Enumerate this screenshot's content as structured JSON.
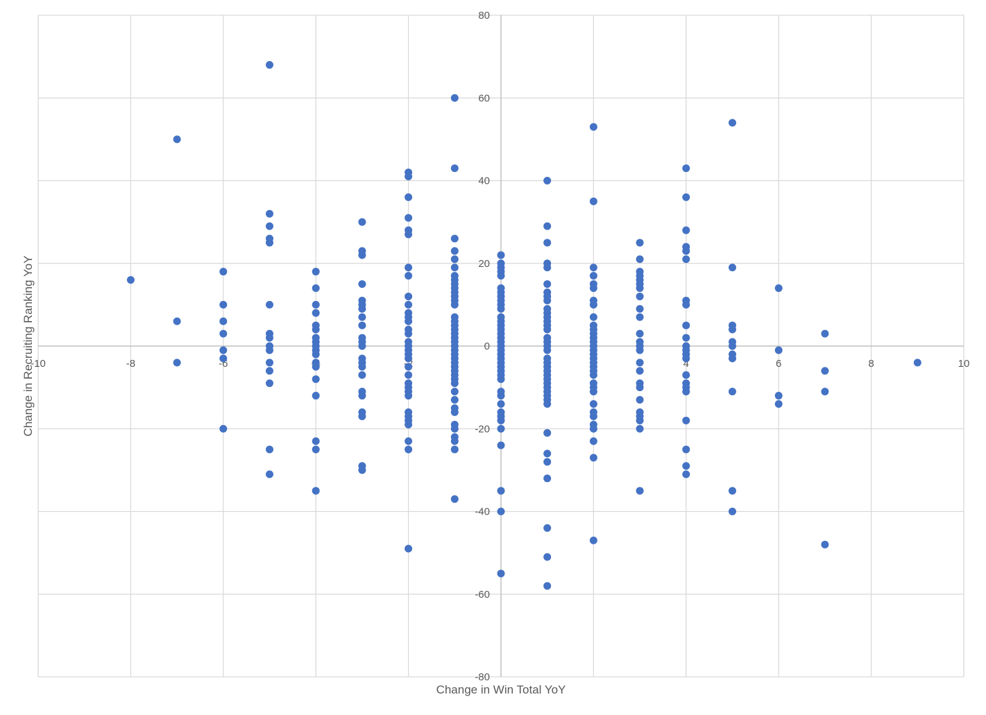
{
  "chart_data": {
    "type": "scatter",
    "title": "",
    "xlabel": "Change in Win Total YoY",
    "ylabel": "Change in Recruiting Ranking YoY",
    "xlim": [
      -10,
      10
    ],
    "ylim": [
      -80,
      80
    ],
    "x_ticks": [
      -10,
      -8,
      -6,
      -4,
      -2,
      0,
      2,
      4,
      6,
      8,
      10
    ],
    "y_ticks": [
      -80,
      -60,
      -40,
      -20,
      0,
      20,
      40,
      60,
      80
    ],
    "x_tick_labels": [
      "-10",
      "-8",
      "-6",
      "-4",
      "-2",
      "0",
      "2",
      "4",
      "6",
      "8",
      "10"
    ],
    "y_tick_labels": [
      "-80",
      "-60",
      "-40",
      "-20",
      "0",
      "20",
      "40",
      "60",
      "80"
    ],
    "grid": true,
    "legend": "none",
    "marker_color": "#4472c4",
    "series": [
      {
        "points": [
          [
            -8,
            16
          ],
          [
            -7,
            50
          ],
          [
            -7,
            6
          ],
          [
            -7,
            -4
          ],
          [
            -6,
            18
          ],
          [
            -6,
            10
          ],
          [
            -6,
            6
          ],
          [
            -6,
            3
          ],
          [
            -6,
            -1
          ],
          [
            -6,
            -3
          ],
          [
            -6,
            -20
          ],
          [
            -5,
            68
          ],
          [
            -5,
            32
          ],
          [
            -5,
            29
          ],
          [
            -5,
            26
          ],
          [
            -5,
            25
          ],
          [
            -5,
            10
          ],
          [
            -5,
            3
          ],
          [
            -5,
            2
          ],
          [
            -5,
            0
          ],
          [
            -5,
            -1
          ],
          [
            -5,
            -4
          ],
          [
            -5,
            -6
          ],
          [
            -5,
            -9
          ],
          [
            -5,
            -25
          ],
          [
            -5,
            -31
          ],
          [
            -4,
            18
          ],
          [
            -4,
            14
          ],
          [
            -4,
            10
          ],
          [
            -4,
            8
          ],
          [
            -4,
            5
          ],
          [
            -4,
            4
          ],
          [
            -4,
            2
          ],
          [
            -4,
            1
          ],
          [
            -4,
            0
          ],
          [
            -4,
            -1
          ],
          [
            -4,
            -2
          ],
          [
            -4,
            -4
          ],
          [
            -4,
            -5
          ],
          [
            -4,
            -8
          ],
          [
            -4,
            -12
          ],
          [
            -4,
            -23
          ],
          [
            -4,
            -25
          ],
          [
            -4,
            -35
          ],
          [
            -3,
            30
          ],
          [
            -3,
            23
          ],
          [
            -3,
            22
          ],
          [
            -3,
            15
          ],
          [
            -3,
            11
          ],
          [
            -3,
            10
          ],
          [
            -3,
            9
          ],
          [
            -3,
            7
          ],
          [
            -3,
            5
          ],
          [
            -3,
            2
          ],
          [
            -3,
            1
          ],
          [
            -3,
            0
          ],
          [
            -3,
            -3
          ],
          [
            -3,
            -4
          ],
          [
            -3,
            -5
          ],
          [
            -3,
            -7
          ],
          [
            -3,
            -11
          ],
          [
            -3,
            -12
          ],
          [
            -3,
            -16
          ],
          [
            -3,
            -17
          ],
          [
            -3,
            -29
          ],
          [
            -3,
            -30
          ],
          [
            -2,
            42
          ],
          [
            -2,
            41
          ],
          [
            -2,
            36
          ],
          [
            -2,
            31
          ],
          [
            -2,
            28
          ],
          [
            -2,
            27
          ],
          [
            -2,
            19
          ],
          [
            -2,
            17
          ],
          [
            -2,
            12
          ],
          [
            -2,
            10
          ],
          [
            -2,
            8
          ],
          [
            -2,
            7
          ],
          [
            -2,
            6
          ],
          [
            -2,
            4
          ],
          [
            -2,
            3
          ],
          [
            -2,
            1
          ],
          [
            -2,
            0
          ],
          [
            -2,
            -1
          ],
          [
            -2,
            -2
          ],
          [
            -2,
            -3
          ],
          [
            -2,
            -5
          ],
          [
            -2,
            -7
          ],
          [
            -2,
            -9
          ],
          [
            -2,
            -10
          ],
          [
            -2,
            -11
          ],
          [
            -2,
            -12
          ],
          [
            -2,
            -16
          ],
          [
            -2,
            -17
          ],
          [
            -2,
            -18
          ],
          [
            -2,
            -19
          ],
          [
            -2,
            -23
          ],
          [
            -2,
            -25
          ],
          [
            -2,
            -49
          ],
          [
            -1,
            60
          ],
          [
            -1,
            43
          ],
          [
            -1,
            26
          ],
          [
            -1,
            23
          ],
          [
            -1,
            21
          ],
          [
            -1,
            19
          ],
          [
            -1,
            17
          ],
          [
            -1,
            16
          ],
          [
            -1,
            15
          ],
          [
            -1,
            14
          ],
          [
            -1,
            13
          ],
          [
            -1,
            12
          ],
          [
            -1,
            11
          ],
          [
            -1,
            10
          ],
          [
            -1,
            7
          ],
          [
            -1,
            6
          ],
          [
            -1,
            5
          ],
          [
            -1,
            4
          ],
          [
            -1,
            3
          ],
          [
            -1,
            2
          ],
          [
            -1,
            1
          ],
          [
            -1,
            0
          ],
          [
            -1,
            -1
          ],
          [
            -1,
            -2
          ],
          [
            -1,
            -3
          ],
          [
            -1,
            -4
          ],
          [
            -1,
            -5
          ],
          [
            -1,
            -6
          ],
          [
            -1,
            -7
          ],
          [
            -1,
            -8
          ],
          [
            -1,
            -9
          ],
          [
            -1,
            -11
          ],
          [
            -1,
            -13
          ],
          [
            -1,
            -15
          ],
          [
            -1,
            -16
          ],
          [
            -1,
            -19
          ],
          [
            -1,
            -20
          ],
          [
            -1,
            -22
          ],
          [
            -1,
            -23
          ],
          [
            -1,
            -25
          ],
          [
            -1,
            -37
          ],
          [
            0,
            22
          ],
          [
            0,
            20
          ],
          [
            0,
            19
          ],
          [
            0,
            18
          ],
          [
            0,
            17
          ],
          [
            0,
            14
          ],
          [
            0,
            13
          ],
          [
            0,
            12
          ],
          [
            0,
            11
          ],
          [
            0,
            10
          ],
          [
            0,
            9
          ],
          [
            0,
            7
          ],
          [
            0,
            6
          ],
          [
            0,
            5
          ],
          [
            0,
            4
          ],
          [
            0,
            3
          ],
          [
            0,
            2
          ],
          [
            0,
            1
          ],
          [
            0,
            0
          ],
          [
            0,
            -1
          ],
          [
            0,
            -2
          ],
          [
            0,
            -3
          ],
          [
            0,
            -4
          ],
          [
            0,
            -5
          ],
          [
            0,
            -6
          ],
          [
            0,
            -7
          ],
          [
            0,
            -8
          ],
          [
            0,
            -11
          ],
          [
            0,
            -12
          ],
          [
            0,
            -14
          ],
          [
            0,
            -16
          ],
          [
            0,
            -17
          ],
          [
            0,
            -18
          ],
          [
            0,
            -20
          ],
          [
            0,
            -24
          ],
          [
            0,
            -35
          ],
          [
            0,
            -40
          ],
          [
            0,
            -55
          ],
          [
            1,
            40
          ],
          [
            1,
            29
          ],
          [
            1,
            25
          ],
          [
            1,
            20
          ],
          [
            1,
            19
          ],
          [
            1,
            15
          ],
          [
            1,
            13
          ],
          [
            1,
            12
          ],
          [
            1,
            11
          ],
          [
            1,
            9
          ],
          [
            1,
            8
          ],
          [
            1,
            7
          ],
          [
            1,
            6
          ],
          [
            1,
            5
          ],
          [
            1,
            4
          ],
          [
            1,
            2
          ],
          [
            1,
            1
          ],
          [
            1,
            0
          ],
          [
            1,
            -1
          ],
          [
            1,
            -3
          ],
          [
            1,
            -4
          ],
          [
            1,
            -5
          ],
          [
            1,
            -6
          ],
          [
            1,
            -7
          ],
          [
            1,
            -8
          ],
          [
            1,
            -9
          ],
          [
            1,
            -10
          ],
          [
            1,
            -11
          ],
          [
            1,
            -12
          ],
          [
            1,
            -13
          ],
          [
            1,
            -14
          ],
          [
            1,
            -21
          ],
          [
            1,
            -26
          ],
          [
            1,
            -28
          ],
          [
            1,
            -32
          ],
          [
            1,
            -44
          ],
          [
            1,
            -51
          ],
          [
            1,
            -58
          ],
          [
            2,
            53
          ],
          [
            2,
            35
          ],
          [
            2,
            19
          ],
          [
            2,
            17
          ],
          [
            2,
            15
          ],
          [
            2,
            14
          ],
          [
            2,
            11
          ],
          [
            2,
            10
          ],
          [
            2,
            7
          ],
          [
            2,
            5
          ],
          [
            2,
            4
          ],
          [
            2,
            3
          ],
          [
            2,
            2
          ],
          [
            2,
            1
          ],
          [
            2,
            0
          ],
          [
            2,
            -1
          ],
          [
            2,
            -2
          ],
          [
            2,
            -3
          ],
          [
            2,
            -4
          ],
          [
            2,
            -5
          ],
          [
            2,
            -6
          ],
          [
            2,
            -7
          ],
          [
            2,
            -9
          ],
          [
            2,
            -10
          ],
          [
            2,
            -11
          ],
          [
            2,
            -14
          ],
          [
            2,
            -16
          ],
          [
            2,
            -17
          ],
          [
            2,
            -19
          ],
          [
            2,
            -20
          ],
          [
            2,
            -23
          ],
          [
            2,
            -27
          ],
          [
            2,
            -47
          ],
          [
            3,
            25
          ],
          [
            3,
            21
          ],
          [
            3,
            18
          ],
          [
            3,
            17
          ],
          [
            3,
            16
          ],
          [
            3,
            15
          ],
          [
            3,
            14
          ],
          [
            3,
            12
          ],
          [
            3,
            9
          ],
          [
            3,
            7
          ],
          [
            3,
            3
          ],
          [
            3,
            1
          ],
          [
            3,
            0
          ],
          [
            3,
            -1
          ],
          [
            3,
            -4
          ],
          [
            3,
            -6
          ],
          [
            3,
            -9
          ],
          [
            3,
            -10
          ],
          [
            3,
            -13
          ],
          [
            3,
            -16
          ],
          [
            3,
            -17
          ],
          [
            3,
            -18
          ],
          [
            3,
            -20
          ],
          [
            3,
            -35
          ],
          [
            4,
            43
          ],
          [
            4,
            36
          ],
          [
            4,
            28
          ],
          [
            4,
            24
          ],
          [
            4,
            23
          ],
          [
            4,
            21
          ],
          [
            4,
            11
          ],
          [
            4,
            10
          ],
          [
            4,
            5
          ],
          [
            4,
            2
          ],
          [
            4,
            0
          ],
          [
            4,
            -1
          ],
          [
            4,
            -2
          ],
          [
            4,
            -3
          ],
          [
            4,
            -7
          ],
          [
            4,
            -9
          ],
          [
            4,
            -10
          ],
          [
            4,
            -11
          ],
          [
            4,
            -18
          ],
          [
            4,
            -25
          ],
          [
            4,
            -29
          ],
          [
            4,
            -31
          ],
          [
            5,
            54
          ],
          [
            5,
            19
          ],
          [
            5,
            5
          ],
          [
            5,
            4
          ],
          [
            5,
            1
          ],
          [
            5,
            0
          ],
          [
            5,
            -2
          ],
          [
            5,
            -3
          ],
          [
            5,
            -11
          ],
          [
            5,
            -35
          ],
          [
            5,
            -40
          ],
          [
            6,
            14
          ],
          [
            6,
            -1
          ],
          [
            6,
            -12
          ],
          [
            6,
            -14
          ],
          [
            7,
            3
          ],
          [
            7,
            -6
          ],
          [
            7,
            -11
          ],
          [
            7,
            -48
          ],
          [
            9,
            -4
          ]
        ]
      }
    ]
  }
}
